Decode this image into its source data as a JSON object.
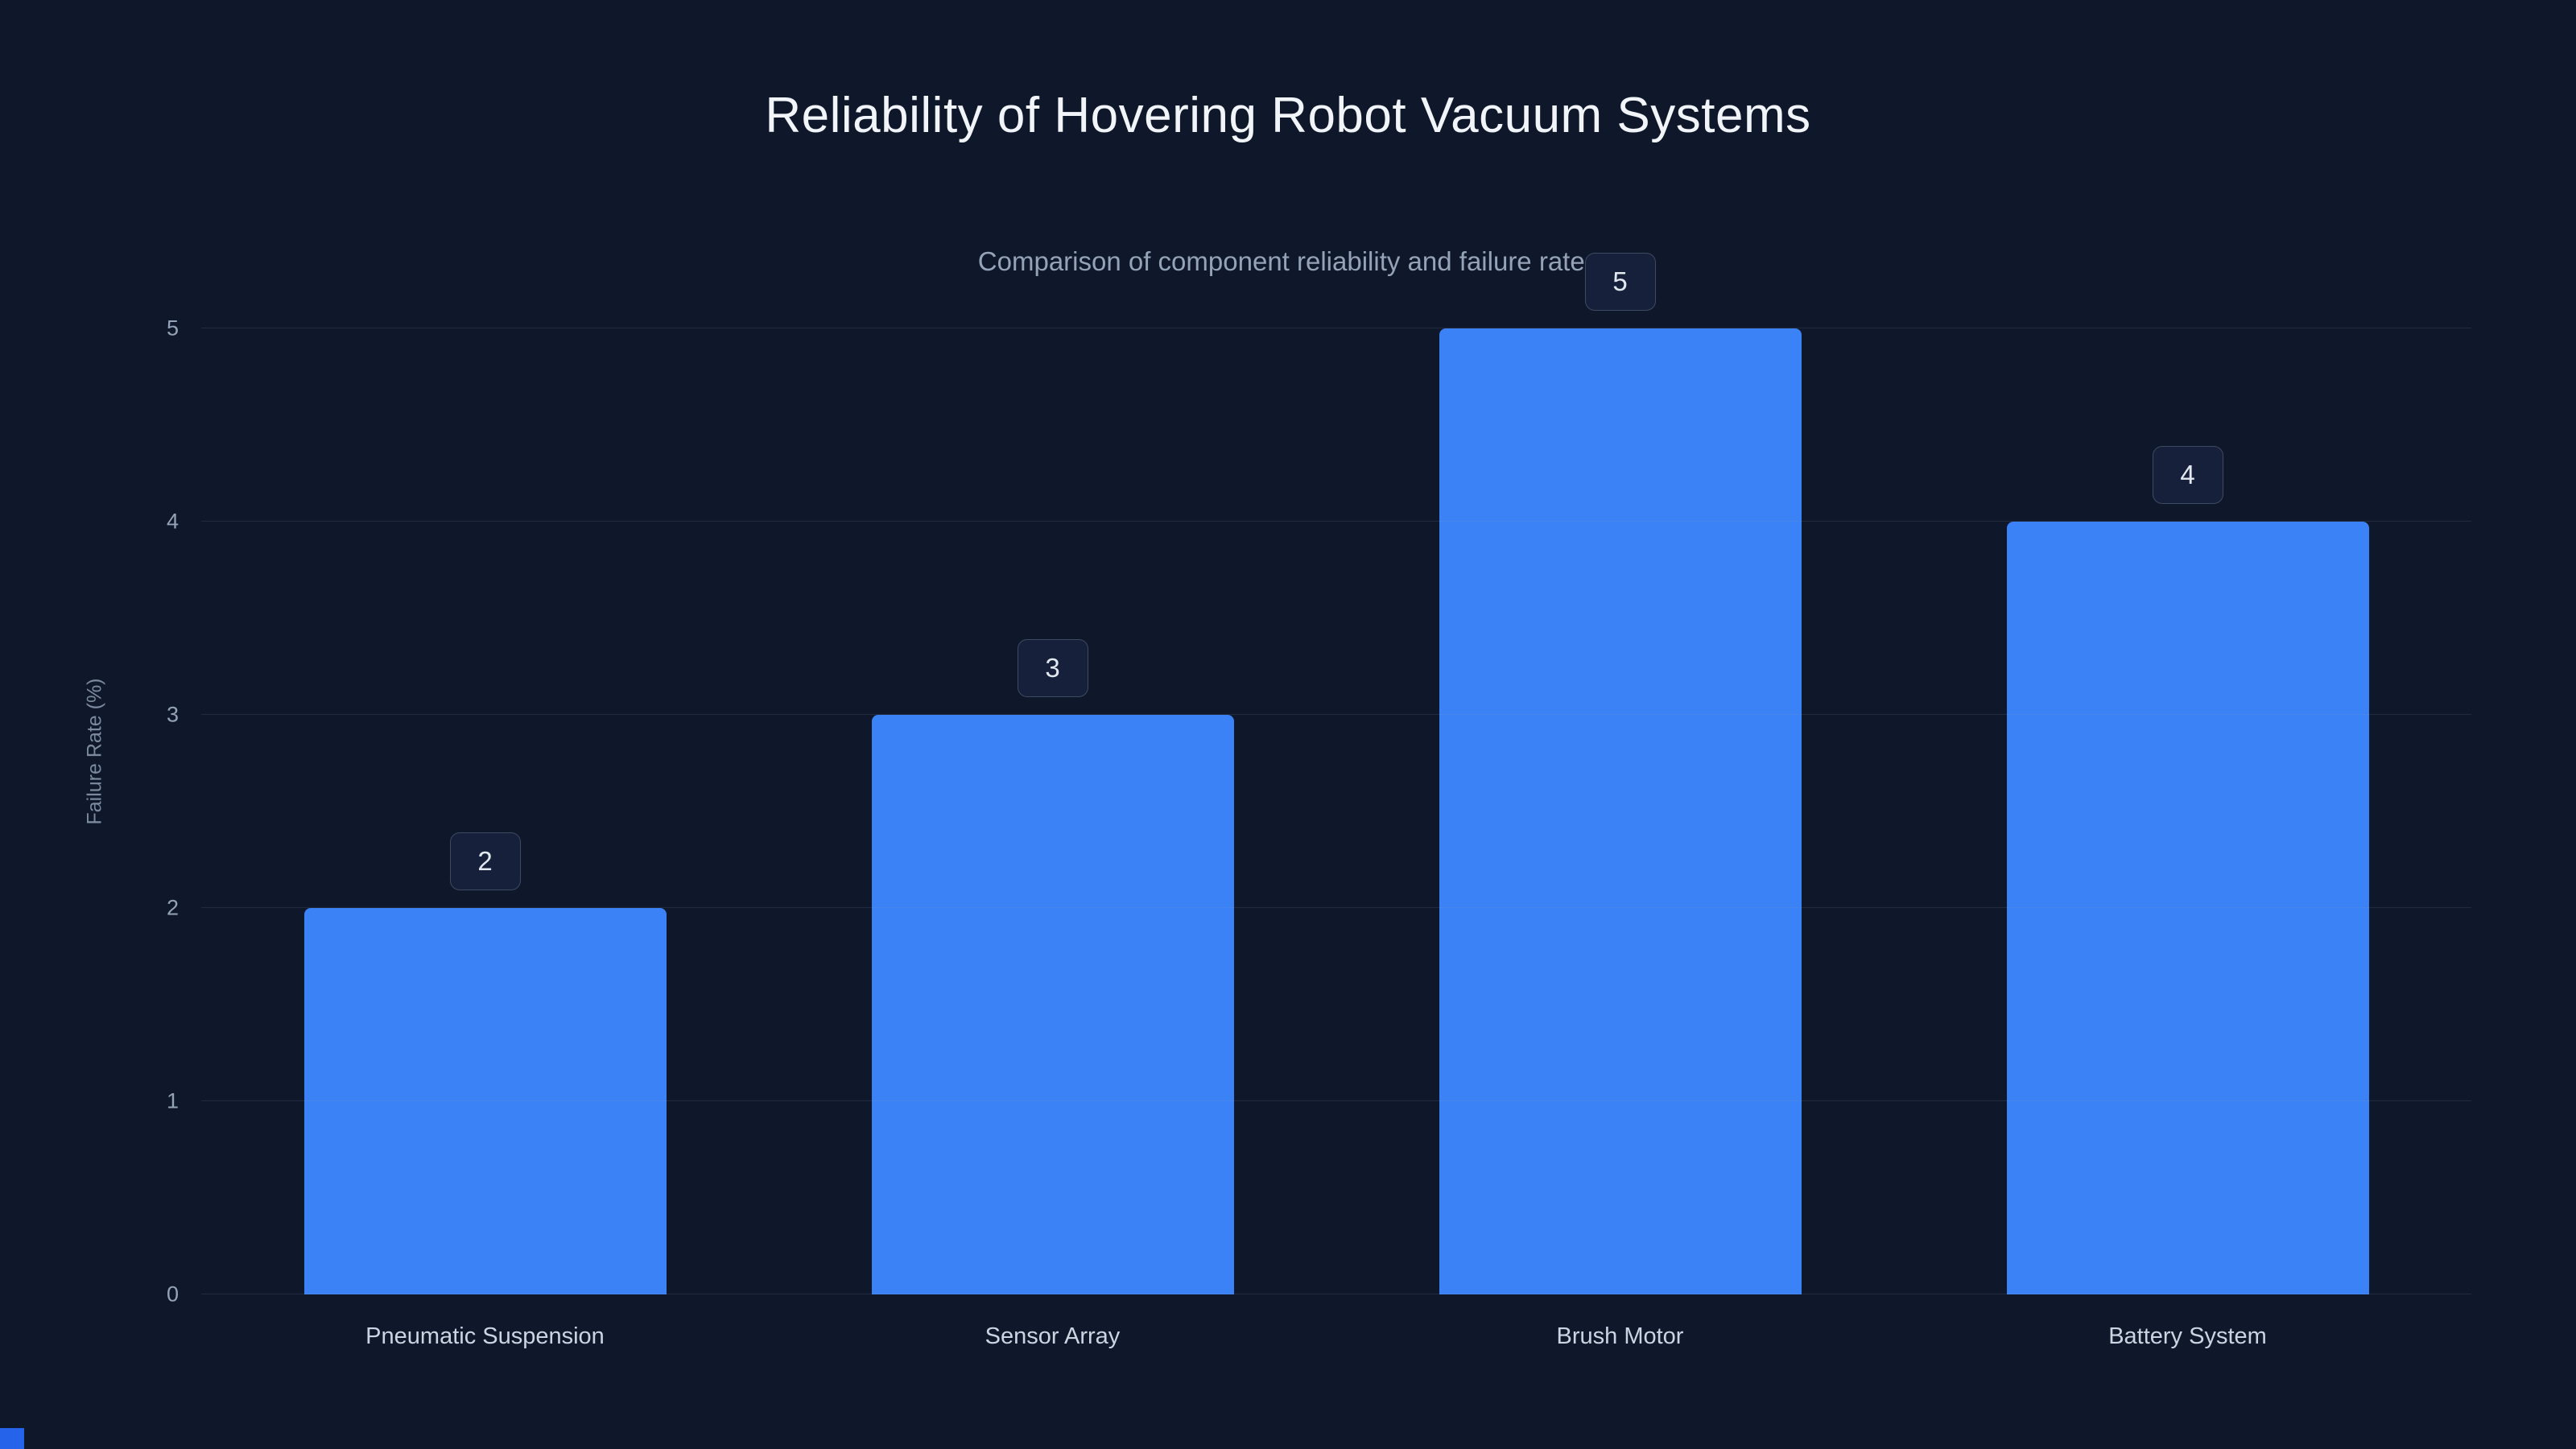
{
  "header": {
    "title": "Reliability of Hovering Robot Vacuum Systems",
    "subtitle": "Comparison of component reliability and failure rates"
  },
  "colors": {
    "background": "#0f172a",
    "bar": "#3b82f6",
    "corner_accent": "#2563eb",
    "badge_border": "#3e4a61",
    "badge_bg": "#16203a"
  },
  "chart_data": {
    "type": "bar",
    "title": "Reliability of Hovering Robot Vacuum Systems",
    "subtitle": "Comparison of component reliability and failure rates",
    "categories": [
      "Pneumatic Suspension",
      "Sensor Array",
      "Brush Motor",
      "Battery System"
    ],
    "values": [
      2,
      3,
      5,
      4
    ],
    "data_labels": [
      "2",
      "3",
      "5",
      "4"
    ],
    "xlabel": "",
    "ylabel": "Failure Rate (%)",
    "ylim": [
      0,
      5
    ],
    "yticks": [
      0,
      1,
      2,
      3,
      4,
      5
    ],
    "grid": "horizontal",
    "legend": "none"
  }
}
